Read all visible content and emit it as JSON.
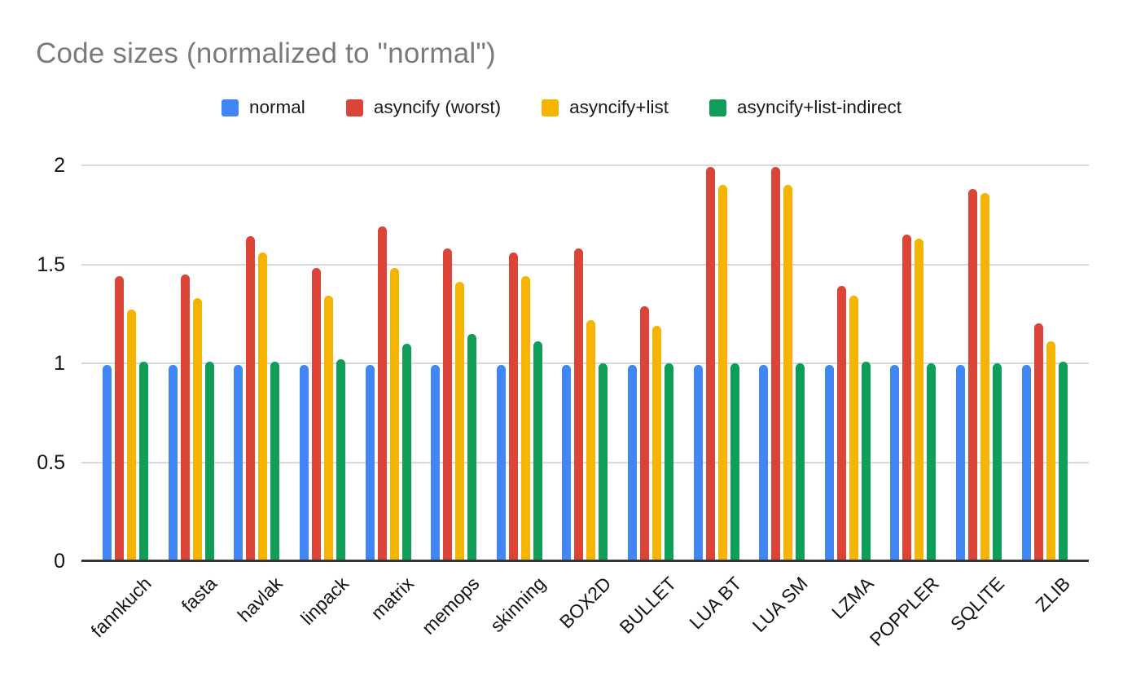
{
  "chart_data": {
    "type": "bar",
    "title": "Code sizes (normalized to \"normal\")",
    "categories": [
      "fannkuch",
      "fasta",
      "havlak",
      "linpack",
      "matrix",
      "memops",
      "skinning",
      "BOX2D",
      "BULLET",
      "LUA BT",
      "LUA SM",
      "LZMA",
      "POPPLER",
      "SQLITE",
      "ZLIB"
    ],
    "series": [
      {
        "name": "normal",
        "color": "#4285F4",
        "values": [
          0.99,
          0.99,
          0.99,
          0.99,
          0.99,
          0.99,
          0.99,
          0.99,
          0.99,
          0.99,
          0.99,
          0.99,
          0.99,
          0.99,
          0.99
        ]
      },
      {
        "name": "asyncify (worst)",
        "color": "#DB4437",
        "values": [
          1.44,
          1.45,
          1.64,
          1.48,
          1.69,
          1.58,
          1.56,
          1.58,
          1.29,
          1.99,
          1.99,
          1.39,
          1.65,
          1.88,
          1.2
        ]
      },
      {
        "name": "asyncify+list",
        "color": "#F4B400",
        "values": [
          1.27,
          1.33,
          1.56,
          1.34,
          1.48,
          1.41,
          1.44,
          1.22,
          1.19,
          1.9,
          1.9,
          1.34,
          1.63,
          1.86,
          1.11
        ]
      },
      {
        "name": "asyncify+list-indirect",
        "color": "#0F9D58",
        "values": [
          1.01,
          1.01,
          1.01,
          1.02,
          1.1,
          1.15,
          1.11,
          1.0,
          1.0,
          1.0,
          1.0,
          1.01,
          1.0,
          1.0,
          1.01
        ]
      }
    ],
    "y_axis": {
      "ticks": [
        0,
        0.5,
        1,
        1.5,
        2
      ],
      "tick_labels": [
        "0",
        "0.5",
        "1",
        "1.5",
        "2"
      ],
      "max": 2.25
    },
    "legend_position": "top",
    "grid": true
  }
}
